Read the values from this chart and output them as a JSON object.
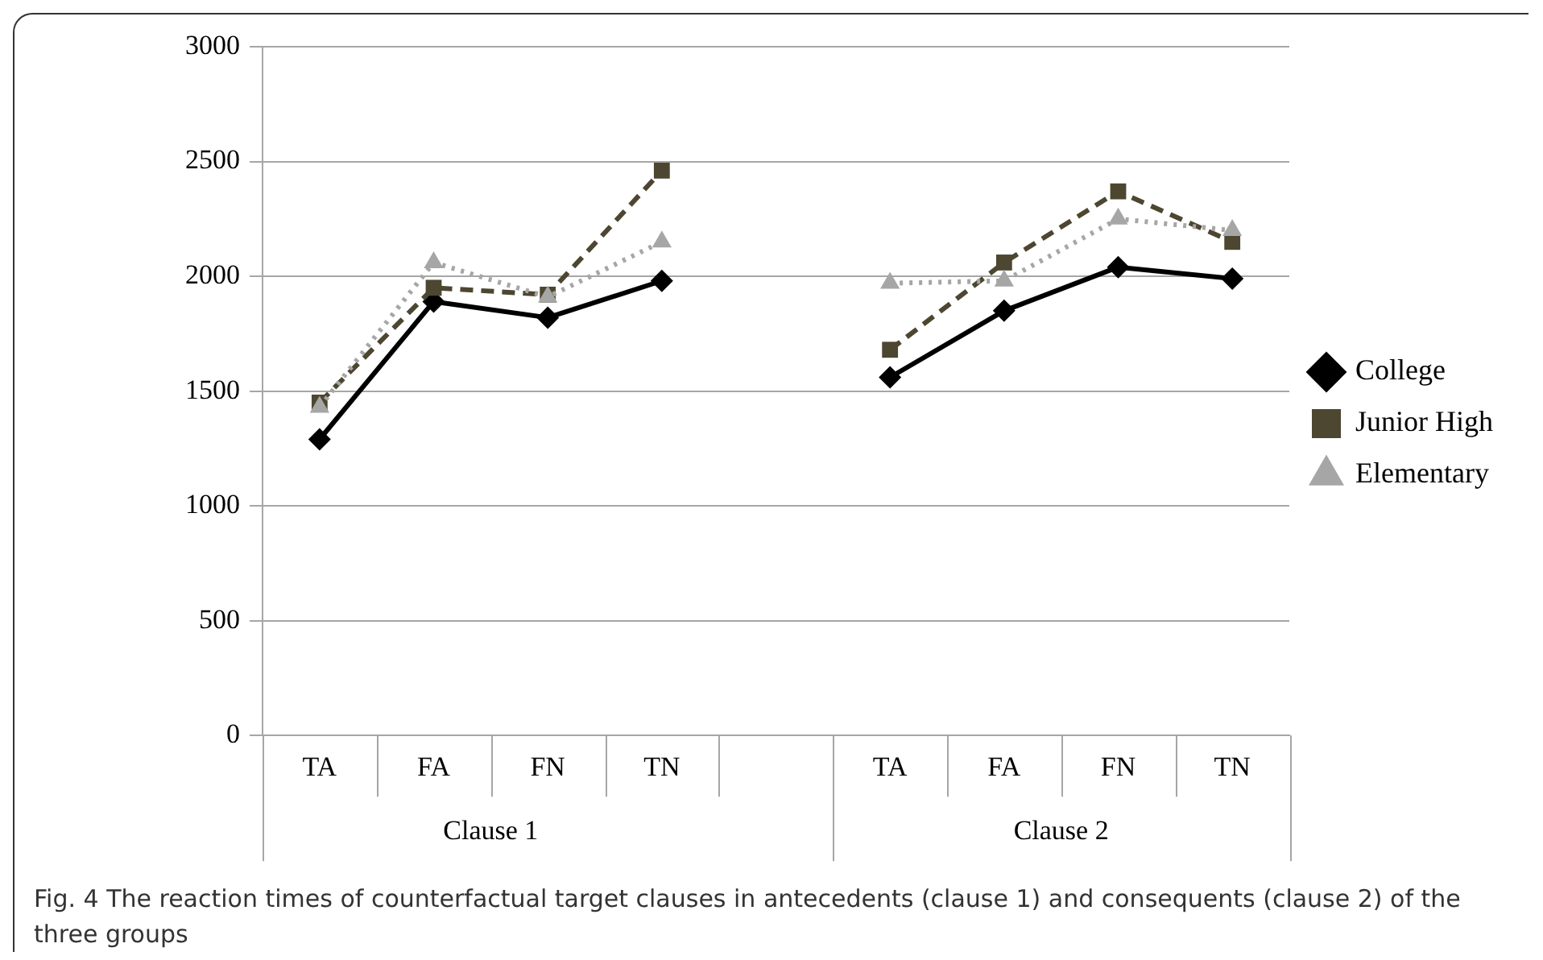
{
  "chart_data": {
    "type": "line",
    "categories": [
      "TA",
      "FA",
      "FN",
      "TN",
      null,
      "TA",
      "FA",
      "FN",
      "TN"
    ],
    "series": [
      {
        "name": "College",
        "color": "#000000",
        "marker": "diamond",
        "line_style": "solid",
        "values": [
          1290,
          1890,
          1820,
          1980,
          null,
          1560,
          1850,
          2040,
          1990
        ]
      },
      {
        "name": "Junior High",
        "color": "#4d4630",
        "marker": "square",
        "line_style": "dashed",
        "values": [
          1450,
          1950,
          1920,
          2460,
          null,
          1680,
          2060,
          2370,
          2150
        ]
      },
      {
        "name": "Elementary",
        "color": "#a6a6a6",
        "marker": "triangle",
        "line_style": "dotted",
        "values": [
          1430,
          2060,
          1910,
          2150,
          null,
          1970,
          1980,
          2250,
          2200
        ]
      }
    ],
    "ylim": [
      0,
      3000
    ],
    "yticks": [
      0,
      500,
      1000,
      1500,
      2000,
      2500,
      3000
    ],
    "grid": "y",
    "legend": "right",
    "annotations": [
      "Clause 1",
      "Clause 2",
      "Fig. 4 The reaction times of counterfactual target clauses in antecedents (clause 1) and consequents (clause 2) of the three groups"
    ]
  }
}
